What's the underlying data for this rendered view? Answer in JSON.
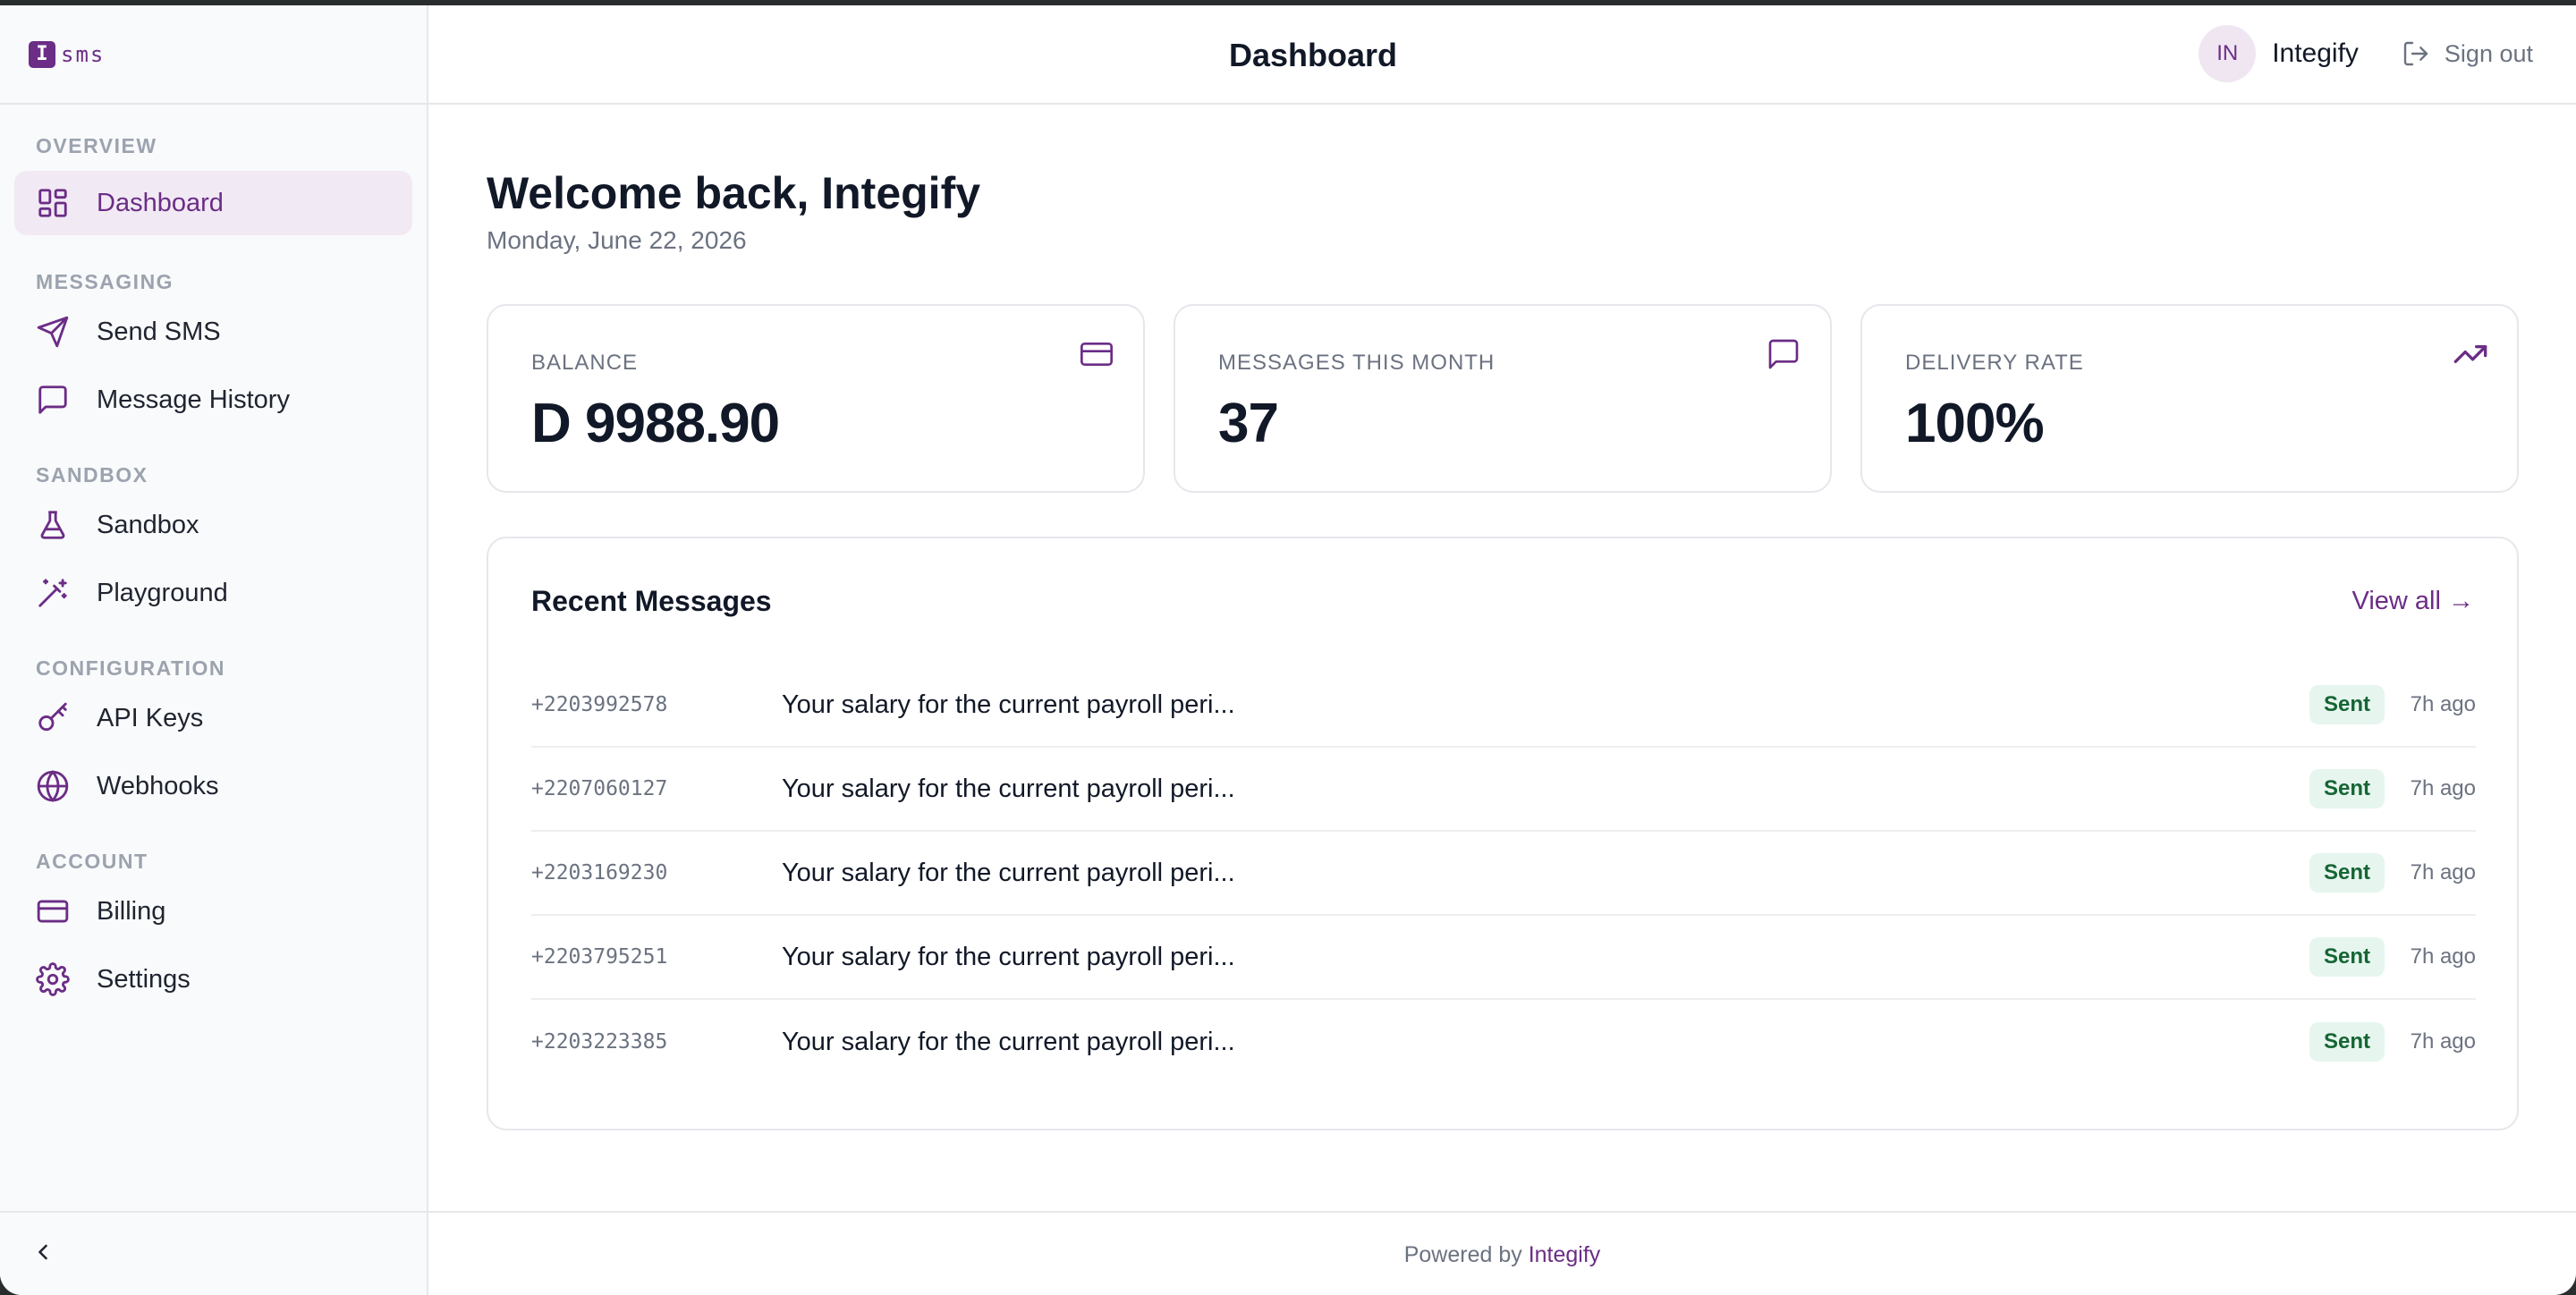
{
  "app": {
    "logo_mark": "I",
    "logo_text": "sms"
  },
  "header": {
    "title": "Dashboard",
    "avatar_initials": "IN",
    "user_name": "Integify",
    "signout_label": "Sign out"
  },
  "sidebar": {
    "sections": [
      {
        "label": "OVERVIEW",
        "items": [
          {
            "label": "Dashboard",
            "icon": "dashboard-icon",
            "active": true
          }
        ]
      },
      {
        "label": "MESSAGING",
        "items": [
          {
            "label": "Send SMS",
            "icon": "send-icon"
          },
          {
            "label": "Message History",
            "icon": "message-icon"
          }
        ]
      },
      {
        "label": "SANDBOX",
        "items": [
          {
            "label": "Sandbox",
            "icon": "flask-icon"
          },
          {
            "label": "Playground",
            "icon": "wand-icon"
          }
        ]
      },
      {
        "label": "CONFIGURATION",
        "items": [
          {
            "label": "API Keys",
            "icon": "key-icon"
          },
          {
            "label": "Webhooks",
            "icon": "globe-icon"
          }
        ]
      },
      {
        "label": "ACCOUNT",
        "items": [
          {
            "label": "Billing",
            "icon": "credit-card-icon"
          },
          {
            "label": "Settings",
            "icon": "gear-icon"
          }
        ]
      }
    ],
    "collapse_icon": "chevron-left-icon"
  },
  "main": {
    "welcome": "Welcome back, Integify",
    "date": "Monday, June 22, 2026",
    "stats": [
      {
        "label": "BALANCE",
        "value": "D 9988.90",
        "icon": "credit-card-icon"
      },
      {
        "label": "MESSAGES THIS MONTH",
        "value": "37",
        "icon": "message-icon"
      },
      {
        "label": "DELIVERY RATE",
        "value": "100%",
        "icon": "trending-up-icon"
      }
    ],
    "recent": {
      "title": "Recent Messages",
      "view_all": "View all →",
      "rows": [
        {
          "phone": "+2203992578",
          "message": "Your salary for the current payroll peri...",
          "status": "Sent",
          "time": "7h ago"
        },
        {
          "phone": "+2207060127",
          "message": "Your salary for the current payroll peri...",
          "status": "Sent",
          "time": "7h ago"
        },
        {
          "phone": "+2203169230",
          "message": "Your salary for the current payroll peri...",
          "status": "Sent",
          "time": "7h ago"
        },
        {
          "phone": "+2203795251",
          "message": "Your salary for the current payroll peri...",
          "status": "Sent",
          "time": "7h ago"
        },
        {
          "phone": "+2203223385",
          "message": "Your salary for the current payroll peri...",
          "status": "Sent",
          "time": "7h ago"
        }
      ]
    }
  },
  "footer": {
    "prefix": "Powered by",
    "brand": "Integify"
  },
  "colors": {
    "accent": "#6b2d86",
    "active_bg": "#f1e9f3",
    "badge_bg": "#e6f6ee",
    "badge_text": "#166534"
  }
}
